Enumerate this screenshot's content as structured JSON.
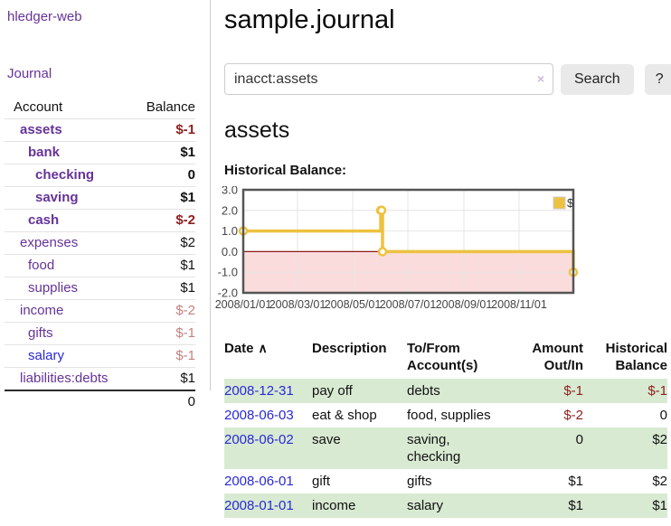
{
  "app": {
    "title": "hledger-web"
  },
  "sidebar": {
    "journal_link": "Journal",
    "accounts": {
      "header_account": "Account",
      "header_balance": "Balance",
      "rows": [
        {
          "name": "assets",
          "balance": "$-1",
          "depth": 1,
          "bold": true,
          "balance_style": "neg-strong"
        },
        {
          "name": "bank",
          "balance": "$1",
          "depth": 2,
          "bold": true,
          "balance_style": ""
        },
        {
          "name": "checking",
          "balance": "0",
          "depth": 3,
          "bold": true,
          "balance_style": ""
        },
        {
          "name": "saving",
          "balance": "$1",
          "depth": 3,
          "bold": true,
          "balance_style": ""
        },
        {
          "name": "cash",
          "balance": "$-2",
          "depth": 2,
          "bold": true,
          "balance_style": "neg-strong"
        },
        {
          "name": "expenses",
          "balance": "$2",
          "depth": 1,
          "bold": false,
          "balance_style": ""
        },
        {
          "name": "food",
          "balance": "$1",
          "depth": 2,
          "bold": false,
          "balance_style": ""
        },
        {
          "name": "supplies",
          "balance": "$1",
          "depth": 2,
          "bold": false,
          "balance_style": ""
        },
        {
          "name": "income",
          "balance": "$-2",
          "depth": 1,
          "bold": false,
          "balance_style": "neg-light"
        },
        {
          "name": "gifts",
          "balance": "$-1",
          "depth": 2,
          "bold": false,
          "balance_style": "neg-light"
        },
        {
          "name": "salary",
          "balance": "$-1",
          "depth": 2,
          "bold": false,
          "balance_style": "neg-light",
          "link_color": "blue"
        },
        {
          "name": "liabilities:debts",
          "balance": "$1",
          "depth": 1,
          "bold": false,
          "balance_style": ""
        }
      ],
      "total": "0"
    }
  },
  "main": {
    "title": "sample.journal",
    "search": {
      "value": "inacct:assets",
      "clear_icon": "×",
      "button_label": "Search",
      "help_label": "?"
    },
    "account_heading": "assets",
    "section_heading": "Historical Balance:"
  },
  "chart_data": {
    "type": "line",
    "step": true,
    "title": "Historical Balance",
    "xlim": [
      "2008-01-01",
      "2008-12-31"
    ],
    "ylim": [
      -2,
      3
    ],
    "y_ticks": [
      3.0,
      2.0,
      1.0,
      0.0,
      -1.0,
      -2.0
    ],
    "x_ticks": [
      "2008/01/01",
      "2008/03/01",
      "2008/05/01",
      "2008/07/01",
      "2008/09/01",
      "2008/11/01"
    ],
    "grid": true,
    "legend_position": "top-right",
    "series": [
      {
        "name": "$",
        "color": "#EDC240",
        "points": [
          [
            "2008-01-01",
            1
          ],
          [
            "2008-06-01",
            2
          ],
          [
            "2008-06-02",
            2
          ],
          [
            "2008-06-03",
            0
          ],
          [
            "2008-12-31",
            -1
          ]
        ]
      }
    ],
    "negative_region_color": "#fbdcdc",
    "zero_line_color": "#8b1a1a"
  },
  "register": {
    "headers": [
      {
        "key": "date",
        "label": "Date",
        "align": "left",
        "sort_icon": "∧",
        "sortable": true
      },
      {
        "key": "description",
        "label": "Description",
        "align": "left"
      },
      {
        "key": "accounts",
        "label": "To/From\nAccount(s)",
        "align": "left"
      },
      {
        "key": "amount",
        "label": "Amount\nOut/In",
        "align": "right"
      },
      {
        "key": "balance",
        "label": "Historical\nBalance",
        "align": "right"
      }
    ],
    "rows": [
      {
        "date": "2008-12-31",
        "description": "pay off",
        "accounts": "debts",
        "amount": "$-1",
        "balance": "$-1",
        "amount_neg": true,
        "balance_neg": true,
        "highlight": true
      },
      {
        "date": "2008-06-03",
        "description": "eat & shop",
        "accounts": "food, supplies",
        "amount": "$-2",
        "balance": "0",
        "amount_neg": true,
        "balance_neg": false,
        "highlight": false
      },
      {
        "date": "2008-06-02",
        "description": "save",
        "accounts": "saving,\nchecking",
        "amount": "0",
        "balance": "$2",
        "amount_neg": false,
        "balance_neg": false,
        "highlight": true
      },
      {
        "date": "2008-06-01",
        "description": "gift",
        "accounts": "gifts",
        "amount": "$1",
        "balance": "$2",
        "amount_neg": false,
        "balance_neg": false,
        "highlight": false
      },
      {
        "date": "2008-01-01",
        "description": "income",
        "accounts": "salary",
        "amount": "$1",
        "balance": "$1",
        "amount_neg": false,
        "balance_neg": false,
        "highlight": true
      }
    ]
  },
  "colors": {
    "link_purple": "#663399",
    "link_blue": "#2929d6",
    "negative": "#8e1f1f",
    "negative_muted": "#c4807f",
    "row_highlight": "#d8ead2",
    "chart_line": "#EDC240",
    "chart_negative_region": "#fbdcdc",
    "chart_zero_line": "#8b1a1a",
    "button_bg": "#e9e9e9"
  }
}
